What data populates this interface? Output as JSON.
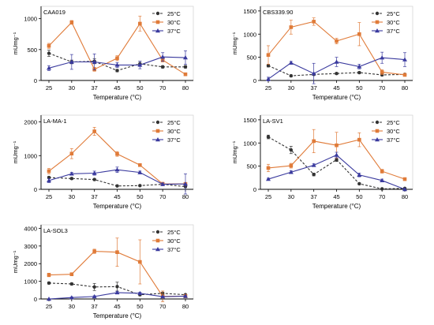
{
  "figure": {
    "x_label": "Temperature (°C)",
    "y_label": "mUmg⁻¹"
  },
  "chart_data": [
    {
      "type": "line",
      "title": "CAA019",
      "xlabel": "Temperature (°C)",
      "ylabel": "mUmg⁻¹",
      "categories": [
        "25",
        "30",
        "37",
        "45",
        "50",
        "70",
        "80"
      ],
      "ylim": [
        0,
        1200
      ],
      "yticks": [
        0,
        500,
        1000
      ],
      "legend_position": "top-right",
      "series": [
        {
          "name": "25°C",
          "values": [
            440,
            300,
            310,
            160,
            270,
            220,
            220
          ],
          "err": [
            50,
            30,
            40,
            20,
            40,
            20,
            20
          ],
          "color": "#333333",
          "style": "dashed",
          "marker": "circle"
        },
        {
          "name": "30°C",
          "values": [
            560,
            940,
            180,
            360,
            920,
            330,
            100
          ],
          "err": [
            40,
            30,
            30,
            40,
            120,
            30,
            20
          ],
          "color": "#E07B39",
          "style": "solid",
          "marker": "square"
        },
        {
          "name": "37°C",
          "values": [
            200,
            300,
            300,
            250,
            250,
            380,
            370
          ],
          "err": [
            40,
            120,
            130,
            40,
            60,
            70,
            110
          ],
          "color": "#3A3A9E",
          "style": "solid",
          "marker": "triangle"
        }
      ]
    },
    {
      "type": "line",
      "title": "CBS339.90",
      "xlabel": "Temperature (°C)",
      "ylabel": "mUmg⁻¹",
      "categories": [
        "25",
        "30",
        "37",
        "45",
        "50",
        "70",
        "80"
      ],
      "ylim": [
        0,
        1600
      ],
      "yticks": [
        0,
        500,
        1000,
        1500
      ],
      "legend_position": "top-right",
      "series": [
        {
          "name": "25°C",
          "values": [
            320,
            100,
            130,
            150,
            170,
            120,
            130
          ],
          "err": [
            30,
            20,
            20,
            20,
            20,
            20,
            20
          ],
          "color": "#333333",
          "style": "dashed",
          "marker": "circle"
        },
        {
          "name": "30°C",
          "values": [
            550,
            1150,
            1270,
            850,
            1000,
            180,
            120
          ],
          "err": [
            200,
            150,
            80,
            60,
            250,
            50,
            30
          ],
          "color": "#E07B39",
          "style": "solid",
          "marker": "square"
        },
        {
          "name": "37°C",
          "values": [
            30,
            380,
            150,
            400,
            300,
            490,
            450
          ],
          "err": [
            40,
            30,
            220,
            100,
            50,
            120,
            150
          ],
          "color": "#3A3A9E",
          "style": "solid",
          "marker": "triangle"
        }
      ]
    },
    {
      "type": "line",
      "title": "LA-MA-1",
      "xlabel": "Temperature (°C)",
      "ylabel": "mUmg⁻¹",
      "categories": [
        "25",
        "30",
        "37",
        "45",
        "50",
        "70",
        "80"
      ],
      "ylim": [
        0,
        2200
      ],
      "yticks": [
        0,
        1000,
        2000
      ],
      "legend_position": "top-right",
      "series": [
        {
          "name": "25°C",
          "values": [
            350,
            320,
            290,
            100,
            110,
            150,
            80
          ],
          "err": [
            30,
            30,
            30,
            20,
            20,
            30,
            20
          ],
          "color": "#333333",
          "style": "dashed",
          "marker": "circle"
        },
        {
          "name": "30°C",
          "values": [
            540,
            1060,
            1720,
            1050,
            720,
            160,
            160
          ],
          "err": [
            80,
            150,
            120,
            70,
            40,
            50,
            40
          ],
          "color": "#E07B39",
          "style": "solid",
          "marker": "square"
        },
        {
          "name": "37°C",
          "values": [
            260,
            460,
            480,
            580,
            500,
            150,
            160
          ],
          "err": [
            60,
            40,
            60,
            80,
            40,
            40,
            300
          ],
          "color": "#3A3A9E",
          "style": "solid",
          "marker": "triangle"
        }
      ]
    },
    {
      "type": "line",
      "title": "LA-SV1",
      "xlabel": "Temperature (°C)",
      "ylabel": "mUmg⁻¹",
      "categories": [
        "25",
        "30",
        "37",
        "45",
        "50",
        "70",
        "80"
      ],
      "ylim": [
        0,
        1600
      ],
      "yticks": [
        0,
        500,
        1000,
        1500
      ],
      "legend_position": "top-right",
      "series": [
        {
          "name": "25°C",
          "values": [
            1130,
            850,
            320,
            640,
            120,
            10,
            20
          ],
          "err": [
            40,
            80,
            30,
            40,
            20,
            10,
            10
          ],
          "color": "#333333",
          "style": "dashed",
          "marker": "circle"
        },
        {
          "name": "30°C",
          "values": [
            460,
            510,
            1040,
            950,
            1070,
            390,
            220
          ],
          "err": [
            80,
            50,
            250,
            280,
            150,
            40,
            30
          ],
          "color": "#E07B39",
          "style": "solid",
          "marker": "square"
        },
        {
          "name": "37°C",
          "values": [
            220,
            370,
            520,
            740,
            310,
            190,
            0
          ],
          "err": [
            20,
            30,
            30,
            60,
            40,
            30,
            0
          ],
          "color": "#3A3A9E",
          "style": "solid",
          "marker": "triangle"
        }
      ]
    },
    {
      "type": "line",
      "title": "LA-SOL3",
      "xlabel": "Temperature (°C)",
      "ylabel": "mUmg⁻¹",
      "categories": [
        "25",
        "30",
        "37",
        "45",
        "50",
        "70",
        "80"
      ],
      "ylim": [
        0,
        4200
      ],
      "yticks": [
        0,
        1000,
        2000,
        3000,
        4000
      ],
      "legend_position": "top-right",
      "series": [
        {
          "name": "25°C",
          "values": [
            900,
            850,
            680,
            700,
            240,
            320,
            240
          ],
          "err": [
            60,
            60,
            200,
            250,
            60,
            60,
            40
          ],
          "color": "#333333",
          "style": "dashed",
          "marker": "circle"
        },
        {
          "name": "30°C",
          "values": [
            1360,
            1400,
            2700,
            2650,
            2100,
            150,
            160
          ],
          "err": [
            100,
            80,
            120,
            800,
            1250,
            300,
            100
          ],
          "color": "#E07B39",
          "style": "solid",
          "marker": "square"
        },
        {
          "name": "37°C",
          "values": [
            0,
            80,
            140,
            360,
            320,
            130,
            160
          ],
          "err": [
            0,
            30,
            40,
            60,
            60,
            30,
            30
          ],
          "color": "#3A3A9E",
          "style": "solid",
          "marker": "triangle"
        }
      ]
    }
  ]
}
